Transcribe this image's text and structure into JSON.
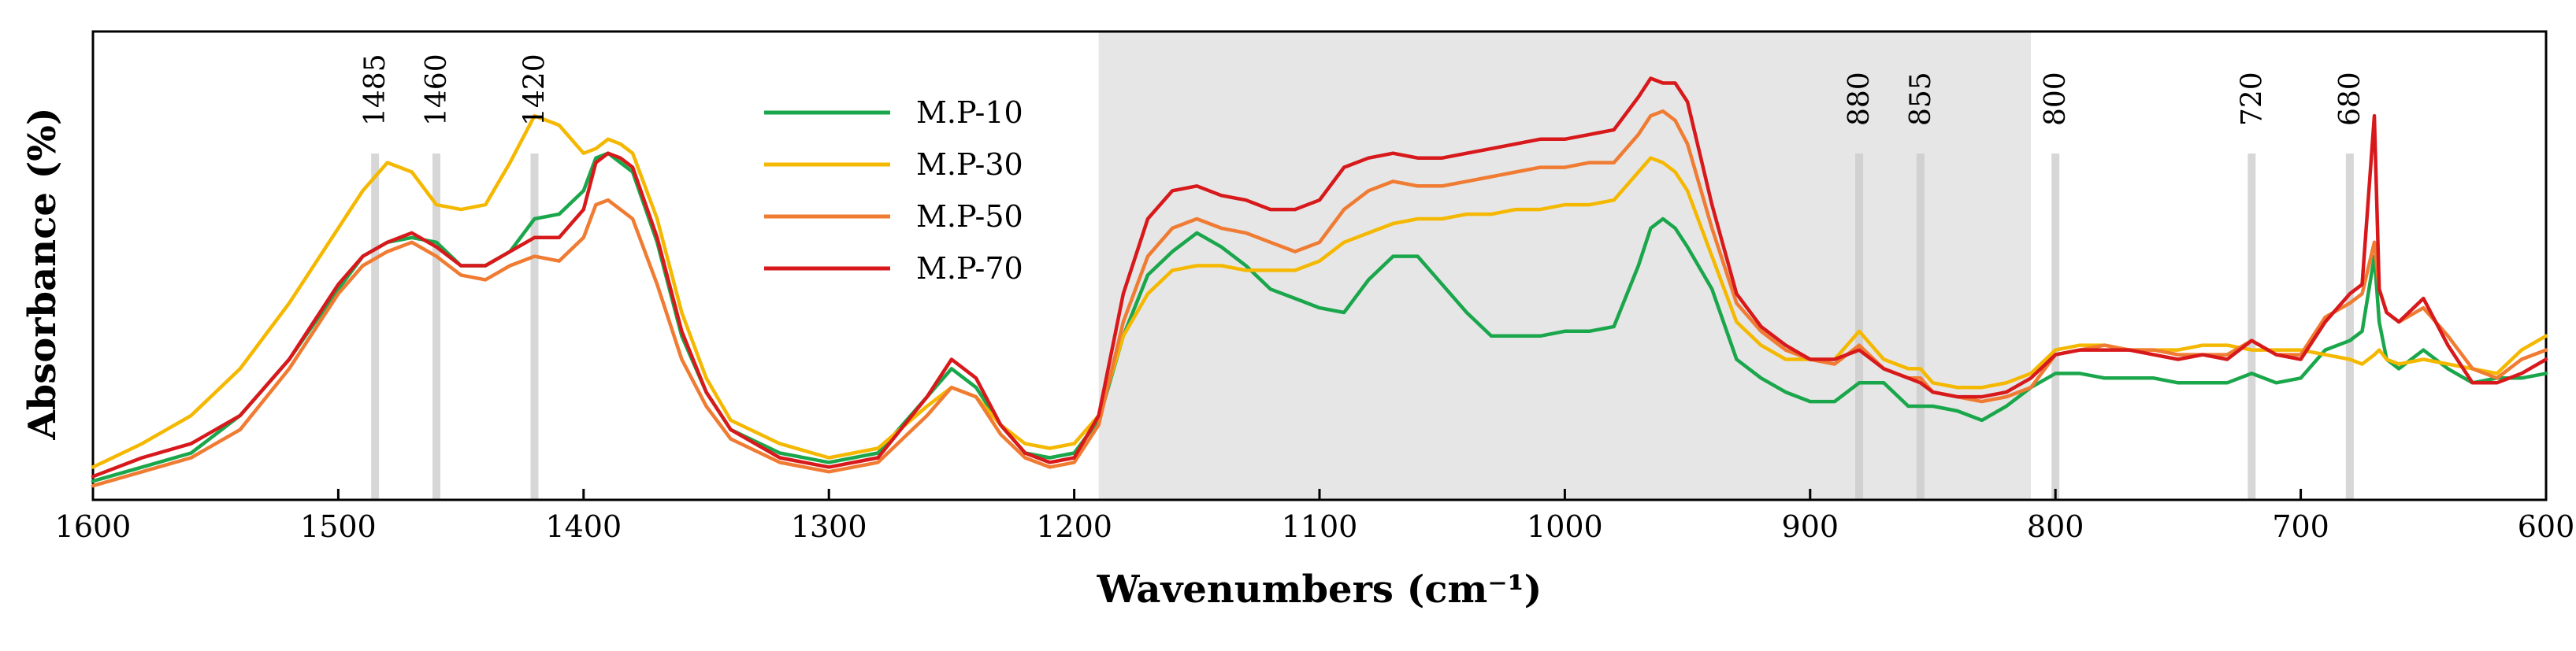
{
  "chart_data": {
    "type": "line",
    "title": "",
    "xlabel": "Wavenumbers (cm⁻¹)",
    "ylabel": "Absorbance (%)",
    "xlim": [
      1600,
      600
    ],
    "x_reversed": true,
    "ylim": [
      0,
      1
    ],
    "grid": false,
    "legend_position": "top-center",
    "x_ticks": [
      "1600",
      "1500",
      "1400",
      "1300",
      "1200",
      "1100",
      "1000",
      "900",
      "800",
      "700",
      "600"
    ],
    "shaded_region": {
      "from": 1190,
      "to": 810,
      "color": "#e6e6e6"
    },
    "markers": [
      {
        "label": "1485",
        "x": 1485
      },
      {
        "label": "1460",
        "x": 1460
      },
      {
        "label": "1420",
        "x": 1420
      },
      {
        "label": "880",
        "x": 880
      },
      {
        "label": "855",
        "x": 855
      },
      {
        "label": "800",
        "x": 800
      },
      {
        "label": "720",
        "x": 720
      },
      {
        "label": "680",
        "x": 680
      }
    ],
    "x": [
      1600,
      1580,
      1560,
      1540,
      1520,
      1500,
      1490,
      1480,
      1470,
      1460,
      1450,
      1440,
      1430,
      1420,
      1410,
      1400,
      1395,
      1390,
      1385,
      1380,
      1370,
      1360,
      1350,
      1340,
      1320,
      1300,
      1280,
      1260,
      1250,
      1240,
      1230,
      1220,
      1210,
      1200,
      1190,
      1180,
      1170,
      1160,
      1150,
      1140,
      1130,
      1120,
      1110,
      1100,
      1090,
      1080,
      1070,
      1060,
      1050,
      1040,
      1030,
      1020,
      1010,
      1000,
      990,
      980,
      970,
      965,
      960,
      955,
      950,
      940,
      930,
      920,
      910,
      900,
      890,
      880,
      870,
      860,
      855,
      850,
      840,
      830,
      820,
      810,
      800,
      790,
      780,
      770,
      760,
      750,
      740,
      730,
      720,
      710,
      700,
      690,
      680,
      675,
      670,
      668,
      665,
      660,
      650,
      640,
      630,
      620,
      610,
      600
    ],
    "series": [
      {
        "name": "M.P-10",
        "color": "#1aa64b",
        "values": [
          0.04,
          0.07,
          0.1,
          0.18,
          0.3,
          0.45,
          0.52,
          0.55,
          0.56,
          0.55,
          0.5,
          0.5,
          0.53,
          0.6,
          0.61,
          0.66,
          0.73,
          0.74,
          0.72,
          0.7,
          0.55,
          0.35,
          0.23,
          0.15,
          0.1,
          0.08,
          0.1,
          0.22,
          0.28,
          0.24,
          0.16,
          0.1,
          0.09,
          0.1,
          0.17,
          0.35,
          0.48,
          0.53,
          0.57,
          0.54,
          0.5,
          0.45,
          0.43,
          0.41,
          0.4,
          0.47,
          0.52,
          0.52,
          0.46,
          0.4,
          0.35,
          0.35,
          0.35,
          0.36,
          0.36,
          0.37,
          0.5,
          0.58,
          0.6,
          0.58,
          0.54,
          0.45,
          0.3,
          0.26,
          0.23,
          0.21,
          0.21,
          0.25,
          0.25,
          0.2,
          0.2,
          0.2,
          0.19,
          0.17,
          0.2,
          0.24,
          0.27,
          0.27,
          0.26,
          0.26,
          0.26,
          0.25,
          0.25,
          0.25,
          0.27,
          0.25,
          0.26,
          0.32,
          0.34,
          0.36,
          0.52,
          0.38,
          0.3,
          0.28,
          0.32,
          0.28,
          0.25,
          0.26,
          0.26,
          0.27
        ]
      },
      {
        "name": "M.P-30",
        "color": "#f5b800",
        "values": [
          0.07,
          0.12,
          0.18,
          0.28,
          0.42,
          0.58,
          0.66,
          0.72,
          0.7,
          0.63,
          0.62,
          0.63,
          0.72,
          0.82,
          0.8,
          0.74,
          0.75,
          0.77,
          0.76,
          0.74,
          0.6,
          0.4,
          0.26,
          0.17,
          0.12,
          0.09,
          0.11,
          0.2,
          0.24,
          0.22,
          0.16,
          0.12,
          0.11,
          0.12,
          0.18,
          0.35,
          0.44,
          0.49,
          0.5,
          0.5,
          0.49,
          0.49,
          0.49,
          0.51,
          0.55,
          0.57,
          0.59,
          0.6,
          0.6,
          0.61,
          0.61,
          0.62,
          0.62,
          0.63,
          0.63,
          0.64,
          0.7,
          0.73,
          0.72,
          0.7,
          0.66,
          0.52,
          0.38,
          0.33,
          0.3,
          0.3,
          0.3,
          0.36,
          0.3,
          0.28,
          0.28,
          0.25,
          0.24,
          0.24,
          0.25,
          0.27,
          0.32,
          0.33,
          0.33,
          0.32,
          0.32,
          0.32,
          0.33,
          0.33,
          0.32,
          0.32,
          0.32,
          0.31,
          0.3,
          0.29,
          0.31,
          0.32,
          0.3,
          0.29,
          0.3,
          0.29,
          0.28,
          0.27,
          0.32,
          0.35
        ]
      },
      {
        "name": "M.P-50",
        "color": "#f07b32",
        "values": [
          0.03,
          0.06,
          0.09,
          0.15,
          0.28,
          0.44,
          0.5,
          0.53,
          0.55,
          0.52,
          0.48,
          0.47,
          0.5,
          0.52,
          0.51,
          0.56,
          0.63,
          0.64,
          0.62,
          0.6,
          0.46,
          0.3,
          0.2,
          0.13,
          0.08,
          0.06,
          0.08,
          0.18,
          0.24,
          0.22,
          0.14,
          0.09,
          0.07,
          0.08,
          0.16,
          0.38,
          0.52,
          0.58,
          0.6,
          0.58,
          0.57,
          0.55,
          0.53,
          0.55,
          0.62,
          0.66,
          0.68,
          0.67,
          0.67,
          0.68,
          0.69,
          0.7,
          0.71,
          0.71,
          0.72,
          0.72,
          0.78,
          0.82,
          0.83,
          0.81,
          0.76,
          0.58,
          0.42,
          0.36,
          0.32,
          0.3,
          0.29,
          0.33,
          0.28,
          0.26,
          0.26,
          0.23,
          0.22,
          0.21,
          0.22,
          0.24,
          0.31,
          0.32,
          0.33,
          0.32,
          0.32,
          0.31,
          0.31,
          0.31,
          0.34,
          0.31,
          0.31,
          0.39,
          0.42,
          0.44,
          0.55,
          0.45,
          0.4,
          0.38,
          0.41,
          0.35,
          0.28,
          0.26,
          0.3,
          0.32
        ]
      },
      {
        "name": "M.P-70",
        "color": "#d7191c",
        "values": [
          0.05,
          0.09,
          0.12,
          0.18,
          0.3,
          0.46,
          0.52,
          0.55,
          0.57,
          0.54,
          0.5,
          0.5,
          0.53,
          0.56,
          0.56,
          0.62,
          0.72,
          0.74,
          0.73,
          0.71,
          0.56,
          0.36,
          0.23,
          0.15,
          0.09,
          0.07,
          0.09,
          0.22,
          0.3,
          0.26,
          0.16,
          0.1,
          0.08,
          0.09,
          0.18,
          0.44,
          0.6,
          0.66,
          0.67,
          0.65,
          0.64,
          0.62,
          0.62,
          0.64,
          0.71,
          0.73,
          0.74,
          0.73,
          0.73,
          0.74,
          0.75,
          0.76,
          0.77,
          0.77,
          0.78,
          0.79,
          0.86,
          0.9,
          0.89,
          0.89,
          0.85,
          0.63,
          0.44,
          0.37,
          0.33,
          0.3,
          0.3,
          0.32,
          0.28,
          0.26,
          0.25,
          0.23,
          0.22,
          0.22,
          0.23,
          0.26,
          0.31,
          0.32,
          0.32,
          0.32,
          0.31,
          0.3,
          0.31,
          0.3,
          0.34,
          0.31,
          0.3,
          0.38,
          0.44,
          0.46,
          0.82,
          0.45,
          0.4,
          0.38,
          0.43,
          0.33,
          0.25,
          0.25,
          0.27,
          0.3
        ]
      }
    ]
  }
}
